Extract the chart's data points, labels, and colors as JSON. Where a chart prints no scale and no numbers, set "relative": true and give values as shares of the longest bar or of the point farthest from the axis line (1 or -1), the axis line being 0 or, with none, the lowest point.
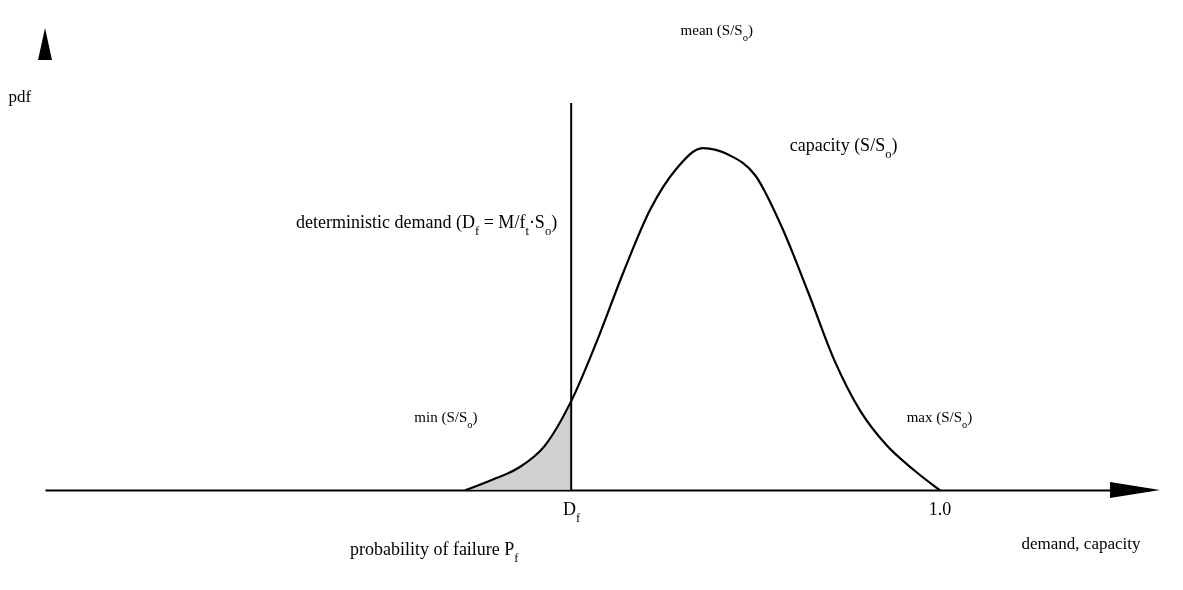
{
  "chart_data": {
    "type": "line",
    "relative": true,
    "xlabel": "demand, capacity",
    "ylabel": "pdf",
    "categories": [
      null,
      null,
      null,
      null,
      null,
      null,
      null,
      null,
      null,
      null,
      null,
      null,
      null,
      null,
      null,
      null,
      null,
      null,
      null,
      null,
      "D$_{f}$",
      null,
      null,
      null,
      null,
      null,
      null,
      null,
      null,
      null,
      null,
      null,
      null,
      null,
      "1.0",
      null,
      null,
      null,
      null,
      null,
      null,
      null,
      null
    ],
    "series": [
      {
        "name": "capacity (S/S$_{o}$)",
        "color": "#000000",
        "values": [
          null,
          null,
          null,
          null,
          null,
          null,
          null,
          null,
          null,
          null,
          null,
          null,
          null,
          null,
          null,
          null,
          0,
          0.03,
          0.065,
          0.13,
          0.26,
          0.44,
          0.64,
          0.82,
          0.94,
          1,
          0.98,
          0.92,
          0.77,
          0.58,
          0.38,
          0.23,
          0.13,
          0.06,
          0,
          null,
          null,
          null,
          null,
          null,
          null,
          null,
          null
        ]
      },
      {
        "name": "probability of failure P$_{f}$",
        "type": "area",
        "color": "#c4c4c4",
        "values": [
          null,
          null,
          null,
          null,
          null,
          null,
          null,
          null,
          null,
          null,
          null,
          null,
          null,
          null,
          null,
          null,
          0,
          0.03,
          0.065,
          0.13,
          0.26,
          null,
          null,
          null,
          null,
          null,
          null,
          null,
          null,
          null,
          null,
          null,
          null,
          null,
          null,
          null,
          null,
          null,
          null,
          null,
          null,
          null,
          null
        ]
      }
    ],
    "ref_lines": [
      {
        "axis": "x",
        "value": "D$_{f}$",
        "label": "deterministic demand (D$_{f}$ = M/f$_{t}$·S$_{o}$)",
        "color": "#000000"
      }
    ],
    "annotations": [
      "mean (S/S$_{o}$)",
      "min (S/S$_{o}$)",
      "max (S/S$_{o}$)"
    ]
  }
}
